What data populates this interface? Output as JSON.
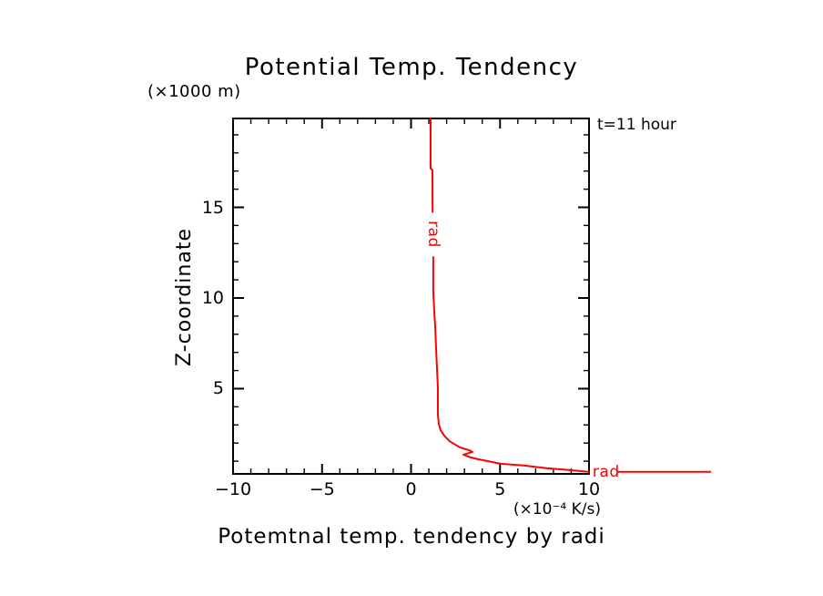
{
  "colors": {
    "background": "#ffffff",
    "axis": "#000000",
    "series_rad": "#ff0000"
  },
  "chart_data": {
    "type": "line",
    "title": "Potential Temp. Tendency",
    "caption": "Potemtnal temp. tendency by radi",
    "ylabel": "Z-coordinate",
    "y_axis_unit": "(×1000 m)",
    "x_axis_unit": "(×10⁻⁴ K/s)",
    "annotation": "t=11 hour",
    "xlim": [
      -10,
      10
    ],
    "ylim": [
      0.3,
      19.9
    ],
    "x_major_ticks": [
      -10,
      -5,
      0,
      5,
      10
    ],
    "y_major_ticks": [
      5,
      10,
      15
    ],
    "minor_tick_step": 1,
    "grid": false,
    "legend": "none",
    "series": [
      {
        "name": "rad",
        "color": "#ff0000",
        "points": [
          [
            1.1,
            19.9
          ],
          [
            1.1,
            17.15
          ],
          [
            1.2,
            17.05
          ],
          [
            1.21,
            14.5
          ],
          [
            1.25,
            12.5
          ],
          [
            1.25,
            10.35
          ],
          [
            1.3,
            9.35
          ],
          [
            1.36,
            8.35
          ],
          [
            1.41,
            7.1
          ],
          [
            1.46,
            6.1
          ],
          [
            1.51,
            5.05
          ],
          [
            1.51,
            3.55
          ],
          [
            1.56,
            3.05
          ],
          [
            1.66,
            2.7
          ],
          [
            1.87,
            2.4
          ],
          [
            2.17,
            2.1
          ],
          [
            2.74,
            1.76
          ],
          [
            3.25,
            1.61
          ],
          [
            3.45,
            1.51
          ],
          [
            2.94,
            1.36
          ],
          [
            3.35,
            1.21
          ],
          [
            3.76,
            1.11
          ],
          [
            4.27,
            1.01
          ],
          [
            5.04,
            0.86
          ],
          [
            6.32,
            0.76
          ],
          [
            7.6,
            0.61
          ],
          [
            8.87,
            0.51
          ],
          [
            10.0,
            0.41
          ]
        ],
        "inline_label": {
          "text": "rad",
          "x": 1.23,
          "z": 13.5
        },
        "end_label": {
          "text": "rad",
          "x": 10.2,
          "z": 0.41
        },
        "extension_line": {
          "from_x": 11.59,
          "to_x": 16.86,
          "z": 0.41
        }
      }
    ]
  }
}
